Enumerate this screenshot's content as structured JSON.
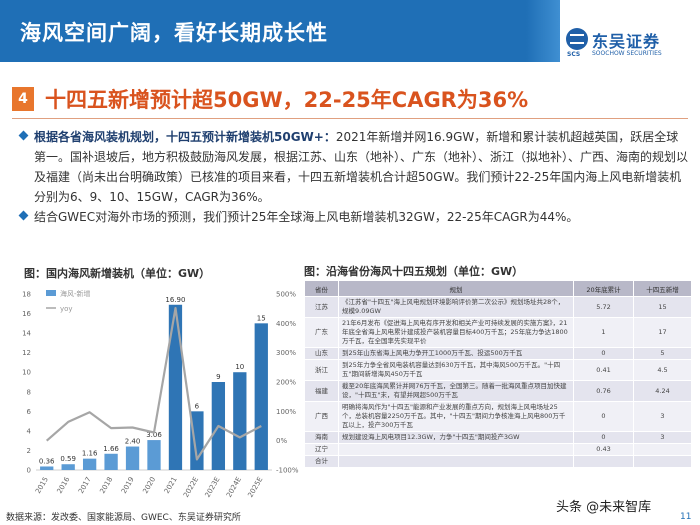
{
  "header": {
    "title": "海风空间广阔，看好长期成长性"
  },
  "logo": {
    "name": "东吴证券",
    "abbr": "SCS",
    "en": "SOOCHOW SECURITIES"
  },
  "section": {
    "number": "4",
    "title": "十四五新增预计超50GW，22-25年CAGR为36%"
  },
  "bullets": [
    {
      "bold": "根据各省海风装机规划，十四五预计新增装机50GW+：",
      "text": "2021年新增并网16.9GW，新增和累计装机超越英国，跃居全球第一。国补退坡后，地方积极鼓励海风发展，根据江苏、山东（地补）、广东（地补）、浙江（拟地补）、广西、海南的规划以及福建（尚未出台明确政策）已核准的项目来看，十四五新增装机合计超50GW。我们预计22-25年国内海上风电新增装机分别为6、9、10、15GW，CAGR为36%。"
    },
    {
      "bold": "",
      "text": "结合GWEC对海外市场的预测，我们预计25年全球海上风电新增装机32GW，22-25年CAGR为44%。"
    }
  ],
  "chart": {
    "title": "图：国内海风新增装机（单位：GW）"
  },
  "table_title": "图：沿海省份海风十四五规划（单位：GW）",
  "chart_data": {
    "type": "bar",
    "title": "图：国内海风新增装机（单位：GW）",
    "categories": [
      "2015",
      "2016",
      "2017",
      "2018",
      "2019",
      "2020",
      "2021",
      "2022E",
      "2023E",
      "2024E",
      "2025E"
    ],
    "series": [
      {
        "name": "海风-新增",
        "type": "bar",
        "values": [
          0.36,
          0.59,
          1.16,
          1.66,
          2.4,
          3.06,
          16.9,
          6,
          9,
          10,
          15
        ]
      },
      {
        "name": "yoy",
        "type": "line",
        "values": [
          0,
          64,
          97,
          43,
          45,
          28,
          452,
          -64,
          50,
          11,
          50
        ]
      }
    ],
    "data_labels": [
      "0.36",
      "0.59",
      "1.16",
      "1.66",
      "2.40",
      "3.06",
      "16.90",
      "6",
      "9",
      "10",
      "15"
    ],
    "ylim_left": [
      0,
      18
    ],
    "yticks_left": [
      "0",
      "2",
      "4",
      "6",
      "8",
      "10",
      "12",
      "14",
      "16",
      "18"
    ],
    "ylim_right": [
      -100,
      500
    ],
    "yticks_right": [
      "-100%",
      "0%",
      "100%",
      "200%",
      "300%",
      "400%",
      "500%"
    ],
    "legend": "top-left",
    "colors": {
      "bar": "#5b9bd5",
      "bar_highlight": "#2f75b5",
      "line": "#a6a6a6"
    }
  },
  "table": {
    "headers": [
      "省份",
      "规划",
      "20年底累计",
      "十四五新增"
    ],
    "rows": [
      {
        "prov": "江苏",
        "plan": "《江苏省\"十四五\"海上风电规划环境影响评价第二次公示》规划场址共28个，规模9.09GW",
        "cum": "5.72",
        "add": "15"
      },
      {
        "prov": "广东",
        "plan": "21年6月发布《促进海上风电有序开发和相关产业可持续发展的实施方案》，21年底全省海上风电累计建成投产装机容量目标400万千瓦；25年底力争达1800万千瓦，在全国率先实现平价",
        "cum": "1",
        "add": "17"
      },
      {
        "prov": "山东",
        "plan": "到25年山东省海上风电力争开工1000万千瓦、投运500万千瓦",
        "cum": "0",
        "add": "5"
      },
      {
        "prov": "浙江",
        "plan": "到25年力争全省风电装机容量达到630万千瓦，其中海风500万千瓦。\"十四五\"期间新增海风450万千瓦",
        "cum": "0.41",
        "add": "4.5"
      },
      {
        "prov": "福建",
        "plan": "截至20年底海风累计并网76万千瓦，全国第三。随着一批海风重点项目加快建设，\"十四五\"末，有望并网超500万千瓦",
        "cum": "0.76",
        "add": "4.24"
      },
      {
        "prov": "广西",
        "plan": "明确将海风作为\"十四五\"能源和产业发展的重点方向，规划海上风电场址25个，总装机容量2250万千瓦。其中，\"十四五\"期间力争核准海上风电800万千瓦以上，投产300万千瓦",
        "cum": "0",
        "add": "3"
      },
      {
        "prov": "海南",
        "plan": "规划建设海上风电项目12.3GW，力争\"十四五\"期间投产3GW",
        "cum": "0",
        "add": "3"
      },
      {
        "prov": "辽宁",
        "plan": "",
        "cum": "0.43",
        "add": ""
      },
      {
        "prov": "合计",
        "plan": "",
        "cum": "",
        "add": ""
      }
    ]
  },
  "source": "数据来源：发改委、国家能源局、GWEC、东吴证券研究所",
  "watermark": "头条 @未来智库",
  "page_number": "11"
}
